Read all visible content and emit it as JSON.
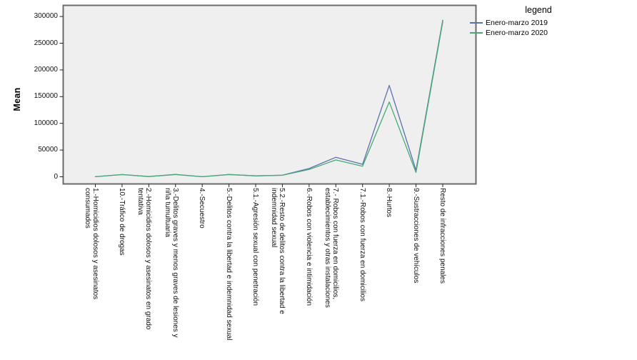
{
  "figure": {
    "colors": {
      "plot_background": "#EFEFEF",
      "frame": "#6B6B6B",
      "tick": "#222222",
      "text": "#000000",
      "series_2019": "#5F70AC",
      "series_2020": "#47AB76"
    },
    "legend": {
      "title": "legend",
      "entries": [
        {
          "label": "Enero-marzo 2019",
          "color": "#5F70AC"
        },
        {
          "label": "Enero-marzo 2020",
          "color": "#47AB76"
        }
      ]
    }
  },
  "chart_data": {
    "type": "line",
    "title": "",
    "xlabel": "",
    "ylabel": "Mean",
    "ylim": [
      0,
      300000
    ],
    "y_ticks": [
      0,
      50000,
      100000,
      150000,
      200000,
      250000,
      300000
    ],
    "grid": false,
    "legend_position": "top-right-outside",
    "categories": [
      "1.-Homicidios dolosos y asesinatos\nconsumados",
      "10.-Tráfico de drogas",
      "2.-Homicidios dolosos y asesinatos en grado\ntentativa",
      "3.-Delitos graves y menos graves de lesiones y\nriña tumultuaria",
      "4.-Secuestro",
      "5.-Delitos contra la libertad e indemnidad sexual",
      "5.1.-Agresión sexual con penetración",
      "5.2.-Resto de delitos contra la libertad e\nindemnidad sexual",
      "6.-Robos con violencia e intimidación",
      "7.- Robos con fuerza en domicilios,\nestablecimientos y otras instalaciones",
      "7.1.-Robos con fuerza en domicilios",
      "8.-Hurtos",
      "9.-Sustracciones de vehículos",
      "Resto de infracciones penales"
    ],
    "series": [
      {
        "name": "Enero-marzo 2019",
        "color": "#5F70AC",
        "values": [
          100,
          4100,
          500,
          4400,
          200,
          4300,
          1800,
          3000,
          15500,
          36500,
          23400,
          171000,
          12000,
          293000
        ]
      },
      {
        "name": "Enero-marzo 2020",
        "color": "#47AB76",
        "values": [
          90,
          4200,
          450,
          4100,
          150,
          4100,
          1700,
          2800,
          13600,
          31500,
          19800,
          140000,
          8000,
          290000
        ]
      }
    ]
  }
}
